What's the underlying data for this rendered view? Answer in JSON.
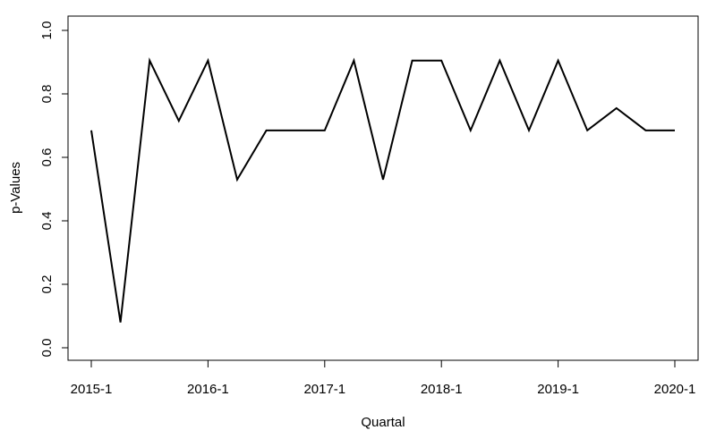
{
  "chart_data": {
    "type": "line",
    "title": "",
    "xlabel": "Quartal",
    "ylabel": "p-Values",
    "x": [
      "2015-1",
      "2015-2",
      "2015-3",
      "2015-4",
      "2016-1",
      "2016-2",
      "2016-3",
      "2016-4",
      "2017-1",
      "2017-2",
      "2017-3",
      "2017-4",
      "2018-1",
      "2018-2",
      "2018-3",
      "2018-4",
      "2019-1",
      "2019-2",
      "2019-3",
      "2019-4",
      "2020-1"
    ],
    "x_tick_labels": [
      "2015-1",
      "2016-1",
      "2017-1",
      "2018-1",
      "2019-1",
      "2020-1"
    ],
    "series": [
      {
        "values": [
          0.685,
          0.08,
          0.905,
          0.715,
          0.905,
          0.53,
          0.685,
          0.685,
          0.685,
          0.905,
          0.53,
          0.905,
          0.905,
          0.685,
          0.905,
          0.685,
          0.905,
          0.685,
          0.755,
          0.685,
          0.685
        ]
      }
    ],
    "ylim": [
      0,
      1
    ],
    "y_ticks": [
      0.0,
      0.2,
      0.4,
      0.6,
      0.8,
      1.0
    ],
    "y_tick_labels": [
      "0.0",
      "0.2",
      "0.4",
      "0.6",
      "0.8",
      "1.0"
    ],
    "grid": false,
    "legend": "none",
    "line_color": "#000000"
  }
}
